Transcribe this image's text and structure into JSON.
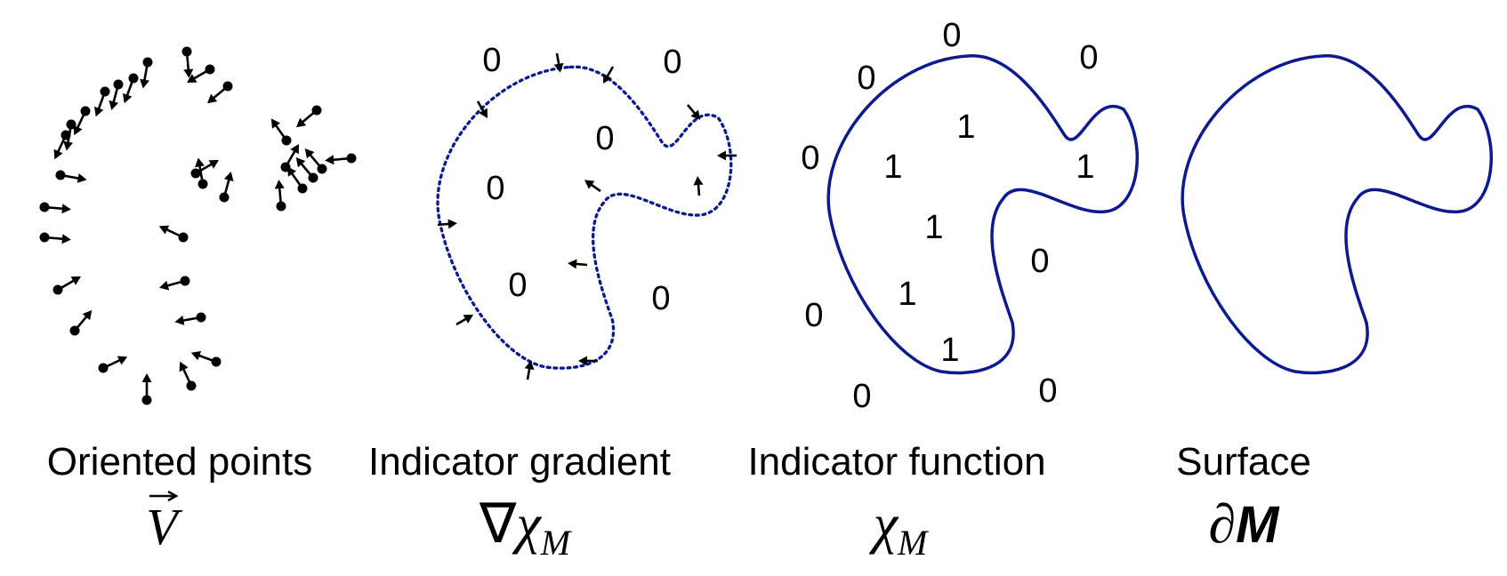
{
  "panels": [
    {
      "id": "oriented-points",
      "title": "Oriented points"
    },
    {
      "id": "indicator-gradient",
      "title": "Indicator gradient"
    },
    {
      "id": "indicator-function",
      "title": "Indicator function"
    },
    {
      "id": "surface",
      "title": "Surface"
    }
  ],
  "symbols": {
    "oriented_points": "V",
    "indicator_gradient_nabla": "∇",
    "chi": "χ",
    "subscript": "M",
    "partial": "∂"
  },
  "labels": {
    "zero": "0",
    "one": "1"
  },
  "colors": {
    "curve": "#0b1a8f",
    "points": "#000000"
  }
}
